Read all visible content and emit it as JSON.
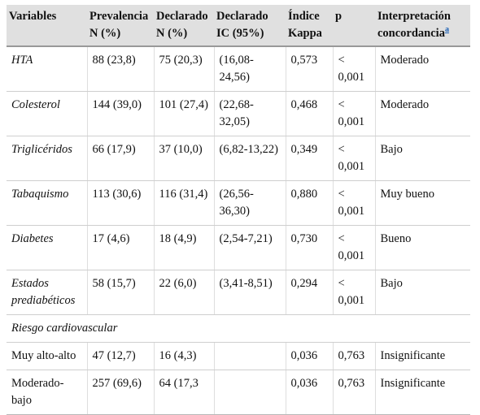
{
  "table": {
    "headers": [
      {
        "line1": "Variables",
        "line2": ""
      },
      {
        "line1": "Prevalencia",
        "line2": "N (%)"
      },
      {
        "line1": "Declarado",
        "line2": "N (%)"
      },
      {
        "line1": "Declarado",
        "line2": "IC (95%)"
      },
      {
        "line1": "Índice",
        "line2": "Kappa"
      },
      {
        "line1": "p",
        "line2": ""
      },
      {
        "line1": "Interpretación",
        "line2": "concordancia",
        "sup": "a"
      }
    ],
    "rows": [
      {
        "variable": "HTA",
        "prevalencia": "88 (23,8)",
        "declarado_n": "75 (20,3)",
        "ic": "(16,08-24,56)",
        "kappa": "0,573",
        "p": "< 0,001",
        "interpretacion": "Moderado"
      },
      {
        "variable": "Colesterol",
        "prevalencia": "144 (39,0)",
        "declarado_n": "101 (27,4)",
        "ic": "(22,68-32,05)",
        "kappa": "0,468",
        "p": "< 0,001",
        "interpretacion": "Moderado"
      },
      {
        "variable": "Triglicéridos",
        "prevalencia": "66 (17,9)",
        "declarado_n": "37 (10,0)",
        "ic": "(6,82-13,22)",
        "kappa": "0,349",
        "p": "< 0,001",
        "interpretacion": "Bajo"
      },
      {
        "variable": "Tabaquismo",
        "prevalencia": "113 (30,6)",
        "declarado_n": "116 (31,4)",
        "ic": "(26,56-36,30)",
        "kappa": "0,880",
        "p": "< 0,001",
        "interpretacion": "Muy bueno"
      },
      {
        "variable": "Diabetes",
        "prevalencia": "17 (4,6)",
        "declarado_n": "18 (4,9)",
        "ic": "(2,54-7,21)",
        "kappa": "0,730",
        "p": "< 0,001",
        "interpretacion": "Bueno"
      },
      {
        "variable": "Estados prediabéticos",
        "prevalencia": "58 (15,7)",
        "declarado_n": "22 (6,0)",
        "ic": "(3,41-8,51)",
        "kappa": "0,294",
        "p": "< 0,001",
        "interpretacion": "Bajo"
      }
    ],
    "group_label": "Riesgo cardiovascular",
    "subrows": [
      {
        "variable": "Muy alto-alto",
        "prevalencia": "47 (12,7)",
        "declarado_n": "16 (4,3)",
        "ic": "",
        "kappa": "0,036",
        "p": "0,763",
        "interpretacion": "Insignificante"
      },
      {
        "variable": "Moderado-bajo",
        "prevalencia": "257 (69,6)",
        "declarado_n": "64 (17,3",
        "ic": "",
        "kappa": "0,036",
        "p": "0,763",
        "interpretacion": "Insignificante"
      }
    ]
  }
}
